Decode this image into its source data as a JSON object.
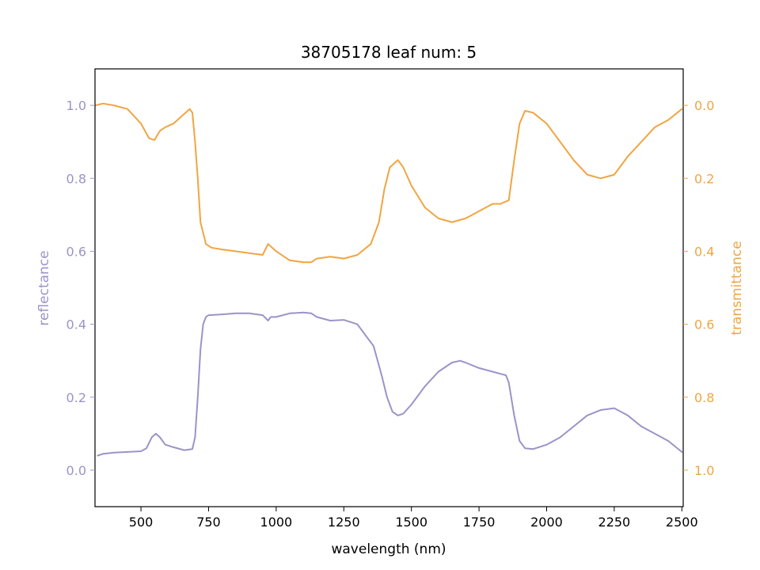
{
  "chart_data": {
    "type": "line",
    "title": "38705178 leaf num: 5",
    "xlabel": "wavelength (nm)",
    "ylabel_left": "reflectance",
    "ylabel_right": "transmittance",
    "xlim": [
      330,
      2505
    ],
    "ylim_left": [
      -0.1,
      1.1
    ],
    "ylim_right_inverted": [
      1.1,
      -0.1
    ],
    "x_ticks": [
      500,
      750,
      1000,
      1250,
      1500,
      1750,
      2000,
      2250,
      2500
    ],
    "y_left_ticks": [
      "0.0",
      "0.2",
      "0.4",
      "0.6",
      "0.8",
      "1.0"
    ],
    "y_right_ticks": [
      "0.0",
      "0.2",
      "0.4",
      "0.6",
      "0.8",
      "1.0"
    ],
    "grid": false,
    "colors": {
      "reflectance": "#9a94c8",
      "transmittance": "#f0a542"
    },
    "series": [
      {
        "key": "reflectance",
        "axis": "left",
        "x": [
          340,
          360,
          400,
          450,
          500,
          520,
          540,
          555,
          570,
          590,
          620,
          660,
          690,
          700,
          710,
          720,
          730,
          740,
          750,
          800,
          850,
          900,
          950,
          970,
          980,
          1000,
          1050,
          1100,
          1130,
          1150,
          1200,
          1250,
          1300,
          1330,
          1360,
          1390,
          1410,
          1430,
          1450,
          1470,
          1500,
          1550,
          1600,
          1650,
          1680,
          1700,
          1750,
          1800,
          1850,
          1860,
          1880,
          1900,
          1920,
          1950,
          2000,
          2050,
          2100,
          2150,
          2200,
          2250,
          2300,
          2350,
          2400,
          2450,
          2500
        ],
        "y": [
          0.04,
          0.045,
          0.048,
          0.05,
          0.052,
          0.06,
          0.09,
          0.1,
          0.09,
          0.07,
          0.063,
          0.055,
          0.058,
          0.09,
          0.2,
          0.33,
          0.4,
          0.42,
          0.425,
          0.427,
          0.43,
          0.43,
          0.425,
          0.41,
          0.42,
          0.42,
          0.43,
          0.432,
          0.43,
          0.42,
          0.41,
          0.412,
          0.4,
          0.37,
          0.34,
          0.26,
          0.2,
          0.16,
          0.15,
          0.155,
          0.18,
          0.23,
          0.27,
          0.295,
          0.3,
          0.295,
          0.28,
          0.27,
          0.26,
          0.24,
          0.15,
          0.08,
          0.06,
          0.058,
          0.07,
          0.09,
          0.12,
          0.15,
          0.165,
          0.17,
          0.15,
          0.12,
          0.1,
          0.08,
          0.05
        ]
      },
      {
        "key": "transmittance",
        "axis": "right",
        "x": [
          330,
          360,
          400,
          450,
          500,
          530,
          550,
          570,
          590,
          620,
          650,
          680,
          690,
          700,
          710,
          720,
          740,
          760,
          800,
          850,
          900,
          950,
          970,
          1000,
          1050,
          1100,
          1130,
          1150,
          1200,
          1250,
          1300,
          1350,
          1380,
          1400,
          1420,
          1450,
          1470,
          1500,
          1550,
          1600,
          1650,
          1700,
          1750,
          1800,
          1830,
          1860,
          1880,
          1900,
          1920,
          1950,
          2000,
          2050,
          2100,
          2150,
          2200,
          2250,
          2300,
          2350,
          2400,
          2450,
          2500
        ],
        "y": [
          0.0,
          -0.005,
          0.0,
          0.01,
          0.05,
          0.09,
          0.095,
          0.07,
          0.06,
          0.05,
          0.03,
          0.01,
          0.02,
          0.1,
          0.2,
          0.32,
          0.38,
          0.39,
          0.395,
          0.4,
          0.405,
          0.41,
          0.38,
          0.4,
          0.425,
          0.43,
          0.43,
          0.42,
          0.415,
          0.42,
          0.41,
          0.38,
          0.32,
          0.23,
          0.17,
          0.15,
          0.17,
          0.22,
          0.28,
          0.31,
          0.32,
          0.31,
          0.29,
          0.27,
          0.27,
          0.26,
          0.15,
          0.05,
          0.015,
          0.02,
          0.05,
          0.1,
          0.15,
          0.19,
          0.2,
          0.19,
          0.14,
          0.1,
          0.06,
          0.04,
          0.01
        ]
      }
    ]
  }
}
